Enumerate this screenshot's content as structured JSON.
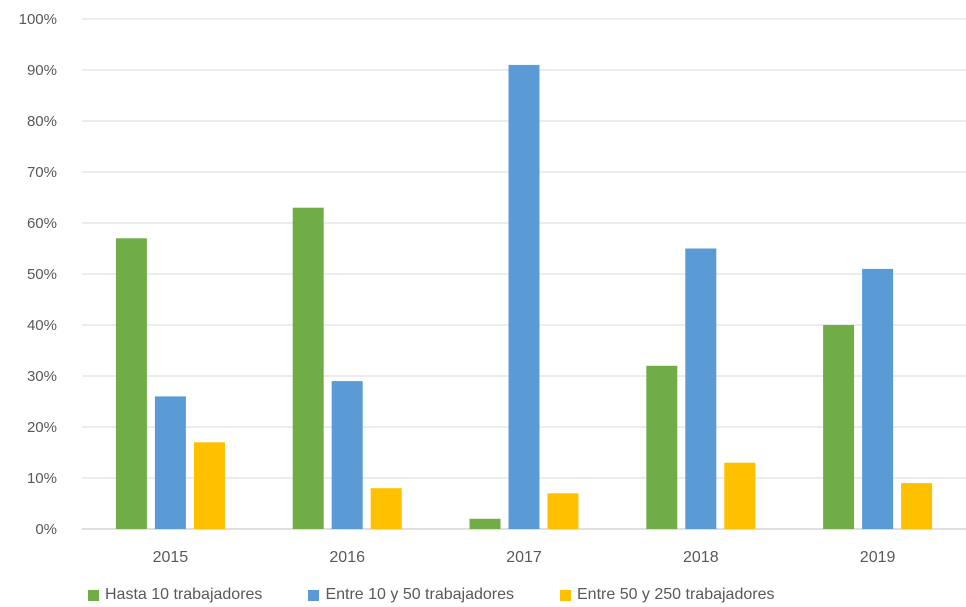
{
  "chart_data": {
    "type": "bar",
    "categories": [
      "2015",
      "2016",
      "2017",
      "2018",
      "2019"
    ],
    "series": [
      {
        "name": "Hasta 10 trabajadores",
        "values": [
          57,
          63,
          2,
          32,
          40
        ],
        "color": "#70AD47"
      },
      {
        "name": "Entre 10 y 50 trabajadores",
        "values": [
          26,
          29,
          91,
          55,
          51
        ],
        "color": "#5B9BD5"
      },
      {
        "name": "Entre 50 y 250 trabajadores",
        "values": [
          17,
          8,
          7,
          13,
          9
        ],
        "color": "#FFC000"
      }
    ],
    "ylim": [
      0,
      100
    ],
    "yticks": [
      "0%",
      "10%",
      "20%",
      "30%",
      "40%",
      "50%",
      "60%",
      "70%",
      "80%",
      "90%",
      "100%"
    ],
    "y_unit": "%",
    "grid": true,
    "legend_position": "bottom",
    "title": "",
    "xlabel": "",
    "ylabel": ""
  }
}
